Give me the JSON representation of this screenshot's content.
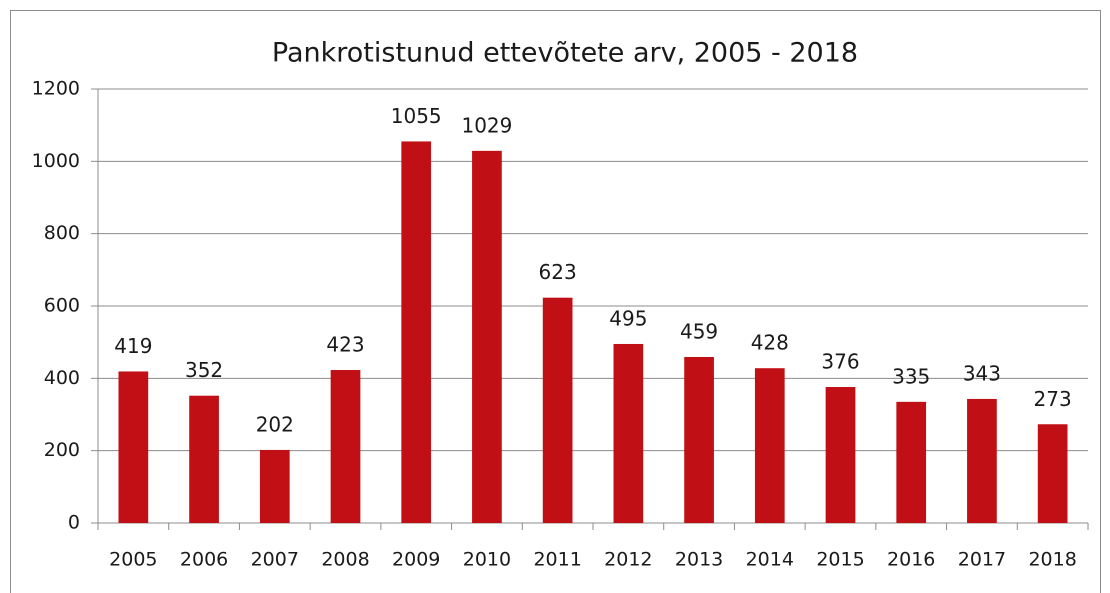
{
  "chart_data": {
    "type": "bar",
    "title": "Pankrotistunud ettevõtete arv, 2005 - 2018",
    "categories": [
      "2005",
      "2006",
      "2007",
      "2008",
      "2009",
      "2010",
      "2011",
      "2012",
      "2013",
      "2014",
      "2015",
      "2016",
      "2017",
      "2018"
    ],
    "values": [
      419,
      352,
      202,
      423,
      1055,
      1029,
      623,
      495,
      459,
      428,
      376,
      335,
      343,
      273
    ],
    "color": "#c00f15",
    "ylim": [
      0,
      1200
    ],
    "yticks": [
      0,
      200,
      400,
      600,
      800,
      1000,
      1200
    ],
    "grid": true
  }
}
